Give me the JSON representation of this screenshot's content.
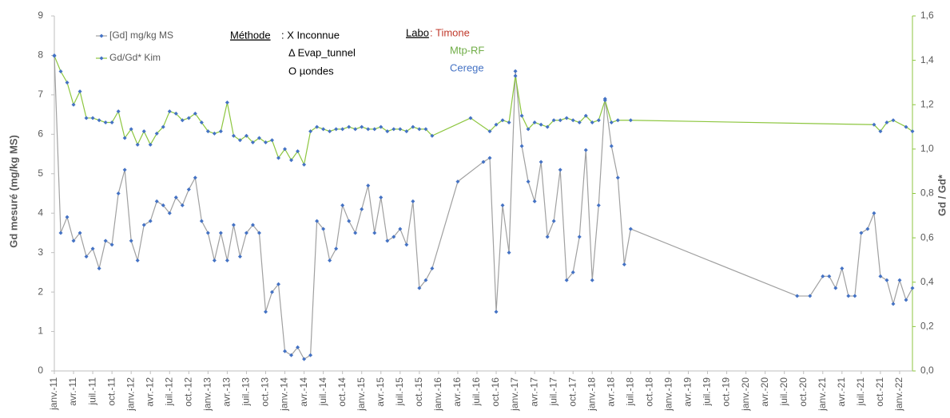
{
  "chart_data": {
    "type": "line",
    "y_label": "Gd mesuré (mg/kg MS)",
    "y2_label": "Gd / Gd*",
    "annotations": [
      {
        "text": "Méthode",
        "color": "#000000"
      },
      {
        "text": ": X Inconnue",
        "color": "#000000"
      },
      {
        "text": "Δ Evap_tunnel",
        "color": "#000000"
      },
      {
        "text": "O µondes",
        "color": "#000000"
      },
      {
        "text": "Labo",
        "color": "#000000"
      },
      {
        "text": ": Timone",
        "color": "#c0392b"
      },
      {
        "text": "Mtp-RF",
        "color": "#70ad47"
      },
      {
        "text": "Cerege",
        "color": "#4472c4"
      }
    ],
    "xlim": [
      "2011-01",
      "2022-03"
    ],
    "xticks": [
      {
        "value": "2011-01",
        "label": "janv.-11"
      },
      {
        "value": "2011-04",
        "label": "avr.-11"
      },
      {
        "value": "2011-07",
        "label": "juil.-11"
      },
      {
        "value": "2011-10",
        "label": "oct.-11"
      },
      {
        "value": "2012-01",
        "label": "janv.-12"
      },
      {
        "value": "2012-04",
        "label": "avr.-12"
      },
      {
        "value": "2012-07",
        "label": "juil.-12"
      },
      {
        "value": "2012-10",
        "label": "oct.-12"
      },
      {
        "value": "2013-01",
        "label": "janv.-13"
      },
      {
        "value": "2013-04",
        "label": "avr.-13"
      },
      {
        "value": "2013-07",
        "label": "juil.-13"
      },
      {
        "value": "2013-10",
        "label": "oct.-13"
      },
      {
        "value": "2014-01",
        "label": "janv.-14"
      },
      {
        "value": "2014-04",
        "label": "avr.-14"
      },
      {
        "value": "2014-07",
        "label": "juil.-14"
      },
      {
        "value": "2014-10",
        "label": "oct.-14"
      },
      {
        "value": "2015-01",
        "label": "janv.-15"
      },
      {
        "value": "2015-04",
        "label": "avr.-15"
      },
      {
        "value": "2015-07",
        "label": "juil.-15"
      },
      {
        "value": "2015-10",
        "label": "oct.-15"
      },
      {
        "value": "2016-01",
        "label": "janv.-16"
      },
      {
        "value": "2016-04",
        "label": "avr.-16"
      },
      {
        "value": "2016-07",
        "label": "juil.-16"
      },
      {
        "value": "2016-10",
        "label": "oct.-16"
      },
      {
        "value": "2017-01",
        "label": "janv.-17"
      },
      {
        "value": "2017-04",
        "label": "avr.-17"
      },
      {
        "value": "2017-07",
        "label": "juil.-17"
      },
      {
        "value": "2017-10",
        "label": "oct.-17"
      },
      {
        "value": "2018-01",
        "label": "janv.-18"
      },
      {
        "value": "2018-04",
        "label": "avr.-18"
      },
      {
        "value": "2018-07",
        "label": "juil.-18"
      },
      {
        "value": "2018-10",
        "label": "oct.-18"
      },
      {
        "value": "2019-01",
        "label": "janv.-19"
      },
      {
        "value": "2019-04",
        "label": "avr.-19"
      },
      {
        "value": "2019-07",
        "label": "juil.-19"
      },
      {
        "value": "2019-10",
        "label": "oct.-19"
      },
      {
        "value": "2020-01",
        "label": "janv.-20"
      },
      {
        "value": "2020-04",
        "label": "avr.-20"
      },
      {
        "value": "2020-07",
        "label": "juil.-20"
      },
      {
        "value": "2020-10",
        "label": "oct.-20"
      },
      {
        "value": "2021-01",
        "label": "janv.-21"
      },
      {
        "value": "2021-04",
        "label": "avr.-21"
      },
      {
        "value": "2021-07",
        "label": "juil.-21"
      },
      {
        "value": "2021-10",
        "label": "oct.-21"
      },
      {
        "value": "2022-01",
        "label": "janv.-22"
      }
    ],
    "ylim": [
      0,
      9
    ],
    "yticks": [
      0,
      1,
      2,
      3,
      4,
      5,
      6,
      7,
      8,
      9
    ],
    "y2lim": [
      0,
      1.6
    ],
    "y2ticks": [
      {
        "value": 0,
        "label": "0,0"
      },
      {
        "value": 0.2,
        "label": "0,2"
      },
      {
        "value": 0.4,
        "label": "0,4"
      },
      {
        "value": 0.6,
        "label": "0,6"
      },
      {
        "value": 0.8,
        "label": "0,8"
      },
      {
        "value": 1,
        "label": "1,0"
      },
      {
        "value": 1.2,
        "label": "1,2"
      },
      {
        "value": 1.4,
        "label": "1,4"
      },
      {
        "value": 1.6,
        "label": "1,6"
      }
    ],
    "series": [
      {
        "name": "[Gd] mg/kg MS",
        "color": "#a0a0a0",
        "marker_color": "#4472c4",
        "x": [
          "2011-01",
          "2011-02",
          "2011-03",
          "2011-04",
          "2011-05",
          "2011-06",
          "2011-07",
          "2011-08",
          "2011-09",
          "2011-10",
          "2011-11",
          "2011-12",
          "2012-01",
          "2012-02",
          "2012-03",
          "2012-04",
          "2012-05",
          "2012-06",
          "2012-07",
          "2012-08",
          "2012-09",
          "2012-10",
          "2012-11",
          "2012-12",
          "2013-01",
          "2013-02",
          "2013-03",
          "2013-04",
          "2013-05",
          "2013-06",
          "2013-07",
          "2013-08",
          "2013-09",
          "2013-10",
          "2013-11",
          "2013-12",
          "2014-01",
          "2014-02",
          "2014-03",
          "2014-04",
          "2014-05",
          "2014-06",
          "2014-07",
          "2014-08",
          "2014-09",
          "2014-10",
          "2014-11",
          "2014-12",
          "2015-01",
          "2015-02",
          "2015-03",
          "2015-04",
          "2015-05",
          "2015-06",
          "2015-07",
          "2015-08",
          "2015-09",
          "2015-10",
          "2015-11",
          "2015-12",
          "2016-04",
          "2016-08",
          "2016-09",
          "2016-10",
          "2016-11",
          "2016-12",
          "2017-01",
          "2017-02",
          "2017-03",
          "2017-04",
          "2017-05",
          "2017-06",
          "2017-07",
          "2017-08",
          "2017-09",
          "2017-10",
          "2017-11",
          "2017-12",
          "2018-01",
          "2018-02",
          "2018-03",
          "2018-04",
          "2018-05",
          "2018-06",
          "2018-07",
          "2020-09",
          "2020-11",
          "2021-01",
          "2021-02",
          "2021-03",
          "2021-04",
          "2021-05",
          "2021-06",
          "2021-07",
          "2021-08",
          "2021-09",
          "2021-10",
          "2021-11",
          "2021-12",
          "2022-01",
          "2022-02",
          "2022-03"
        ],
        "values": [
          8.0,
          3.5,
          3.9,
          3.3,
          3.5,
          2.9,
          3.1,
          2.6,
          3.3,
          3.2,
          4.5,
          5.1,
          3.3,
          2.8,
          3.7,
          3.8,
          4.3,
          4.2,
          4.0,
          4.4,
          4.2,
          4.6,
          4.9,
          3.8,
          3.5,
          2.8,
          3.5,
          2.8,
          3.7,
          2.9,
          3.5,
          3.7,
          3.5,
          1.5,
          2.0,
          2.2,
          0.5,
          0.4,
          0.6,
          0.3,
          0.4,
          3.8,
          3.6,
          2.8,
          3.1,
          4.2,
          3.8,
          3.5,
          4.1,
          4.7,
          3.5,
          4.4,
          3.3,
          3.4,
          3.6,
          3.2,
          4.3,
          2.1,
          2.3,
          2.6,
          4.8,
          5.3,
          5.4,
          1.5,
          4.2,
          3.0,
          7.6,
          5.7,
          4.8,
          4.3,
          5.3,
          3.4,
          3.8,
          5.1,
          2.3,
          2.5,
          3.4,
          5.6,
          2.3,
          4.2,
          6.9,
          5.7,
          4.9,
          2.7,
          3.6,
          1.9,
          1.9,
          2.4,
          2.4,
          2.1,
          2.6,
          1.9,
          1.9,
          3.5,
          3.6,
          4.0,
          2.4,
          2.3,
          1.7,
          2.3,
          1.8,
          2.1
        ]
      },
      {
        "name": "Gd/Gd* Kim",
        "color": "#8dc63f",
        "marker_color": "#4472c4",
        "axis": "y2",
        "x": [
          "2011-01",
          "2011-02",
          "2011-03",
          "2011-04",
          "2011-05",
          "2011-06",
          "2011-07",
          "2011-08",
          "2011-09",
          "2011-10",
          "2011-11",
          "2011-12",
          "2012-01",
          "2012-02",
          "2012-03",
          "2012-04",
          "2012-05",
          "2012-06",
          "2012-07",
          "2012-08",
          "2012-09",
          "2012-10",
          "2012-11",
          "2012-12",
          "2013-01",
          "2013-02",
          "2013-03",
          "2013-04",
          "2013-05",
          "2013-06",
          "2013-07",
          "2013-08",
          "2013-09",
          "2013-10",
          "2013-11",
          "2013-12",
          "2014-01",
          "2014-02",
          "2014-03",
          "2014-04",
          "2014-05",
          "2014-06",
          "2014-07",
          "2014-08",
          "2014-09",
          "2014-10",
          "2014-11",
          "2014-12",
          "2015-01",
          "2015-02",
          "2015-03",
          "2015-04",
          "2015-05",
          "2015-06",
          "2015-07",
          "2015-08",
          "2015-09",
          "2015-10",
          "2015-11",
          "2015-12",
          "2016-06",
          "2016-09",
          "2016-10",
          "2016-11",
          "2016-12",
          "2017-01",
          "2017-02",
          "2017-03",
          "2017-04",
          "2017-05",
          "2017-06",
          "2017-07",
          "2017-08",
          "2017-09",
          "2017-10",
          "2017-11",
          "2017-12",
          "2018-01",
          "2018-02",
          "2018-03",
          "2018-04",
          "2018-05",
          "2018-07",
          "2021-09",
          "2021-10",
          "2021-11",
          "2021-12",
          "2022-02",
          "2022-03"
        ],
        "values": [
          1.42,
          1.35,
          1.3,
          1.2,
          1.26,
          1.14,
          1.14,
          1.13,
          1.12,
          1.12,
          1.17,
          1.05,
          1.09,
          1.02,
          1.08,
          1.02,
          1.07,
          1.1,
          1.17,
          1.16,
          1.13,
          1.14,
          1.16,
          1.12,
          1.08,
          1.07,
          1.08,
          1.21,
          1.06,
          1.04,
          1.06,
          1.03,
          1.05,
          1.03,
          1.04,
          0.96,
          1.0,
          0.95,
          0.99,
          0.93,
          1.08,
          1.1,
          1.09,
          1.08,
          1.09,
          1.09,
          1.1,
          1.09,
          1.1,
          1.09,
          1.09,
          1.1,
          1.08,
          1.09,
          1.09,
          1.08,
          1.1,
          1.09,
          1.09,
          1.06,
          1.14,
          1.08,
          1.11,
          1.13,
          1.12,
          1.33,
          1.15,
          1.09,
          1.12,
          1.11,
          1.1,
          1.13,
          1.13,
          1.14,
          1.13,
          1.12,
          1.15,
          1.12,
          1.13,
          1.22,
          1.12,
          1.13,
          1.13,
          1.11,
          1.08,
          1.12,
          1.13,
          1.1,
          1.08
        ]
      }
    ]
  }
}
